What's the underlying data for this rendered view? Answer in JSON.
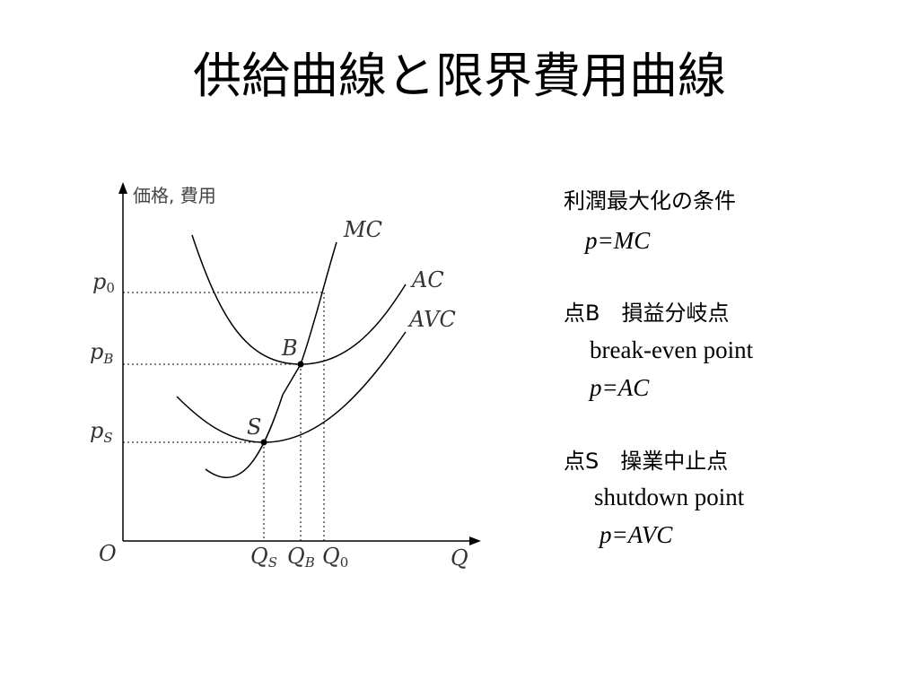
{
  "title": "供給曲線と限界費用曲線",
  "diagram": {
    "y_axis_label": "価格, 費用",
    "x_axis_label": "Q",
    "origin_label": "O",
    "curve_labels": {
      "mc": "MC",
      "ac": "AC",
      "avc": "AVC"
    },
    "point_labels": {
      "b": "B",
      "s": "S"
    },
    "price_labels": {
      "p0": {
        "main": "p",
        "sub": "0"
      },
      "pb": {
        "main": "p",
        "sub": "B"
      },
      "ps": {
        "main": "p",
        "sub": "S"
      }
    },
    "quantity_labels": {
      "qs": {
        "main": "Q",
        "sub": "S"
      },
      "qb": {
        "main": "Q",
        "sub": "B"
      },
      "q0": {
        "main": "Q",
        "sub": "0"
      }
    }
  },
  "notes": {
    "profit_max": {
      "heading": "利潤最大化の条件",
      "formula": "p=MC"
    },
    "point_b": {
      "heading": "点B　損益分岐点",
      "english": "break-even point",
      "formula": "p=AC"
    },
    "point_s": {
      "heading": "点S　操業中止点",
      "english": "shutdown point",
      "formula": "p=AVC"
    }
  }
}
